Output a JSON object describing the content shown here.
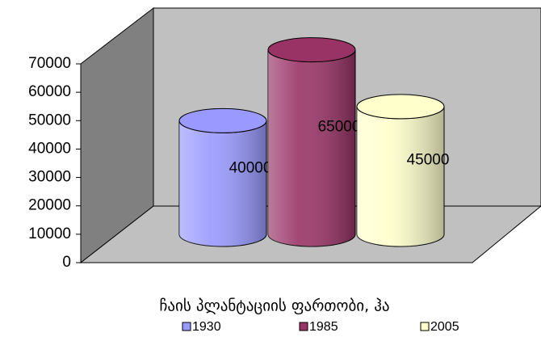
{
  "chart_data": {
    "type": "bar",
    "x_label": "ჩაის პლანტაციის ფართობი, ჰა",
    "series": [
      {
        "name": "1930",
        "color": "#9999ff",
        "values": [
          40000
        ]
      },
      {
        "name": "1985",
        "color": "#993366",
        "values": [
          65000
        ]
      },
      {
        "name": "2005",
        "color": "#ffffcc",
        "values": [
          45000
        ]
      }
    ],
    "ylim": [
      0,
      70000
    ],
    "yticks": [
      0,
      10000,
      20000,
      30000,
      40000,
      50000,
      60000,
      70000
    ],
    "grid": false,
    "legend": "bottom"
  }
}
